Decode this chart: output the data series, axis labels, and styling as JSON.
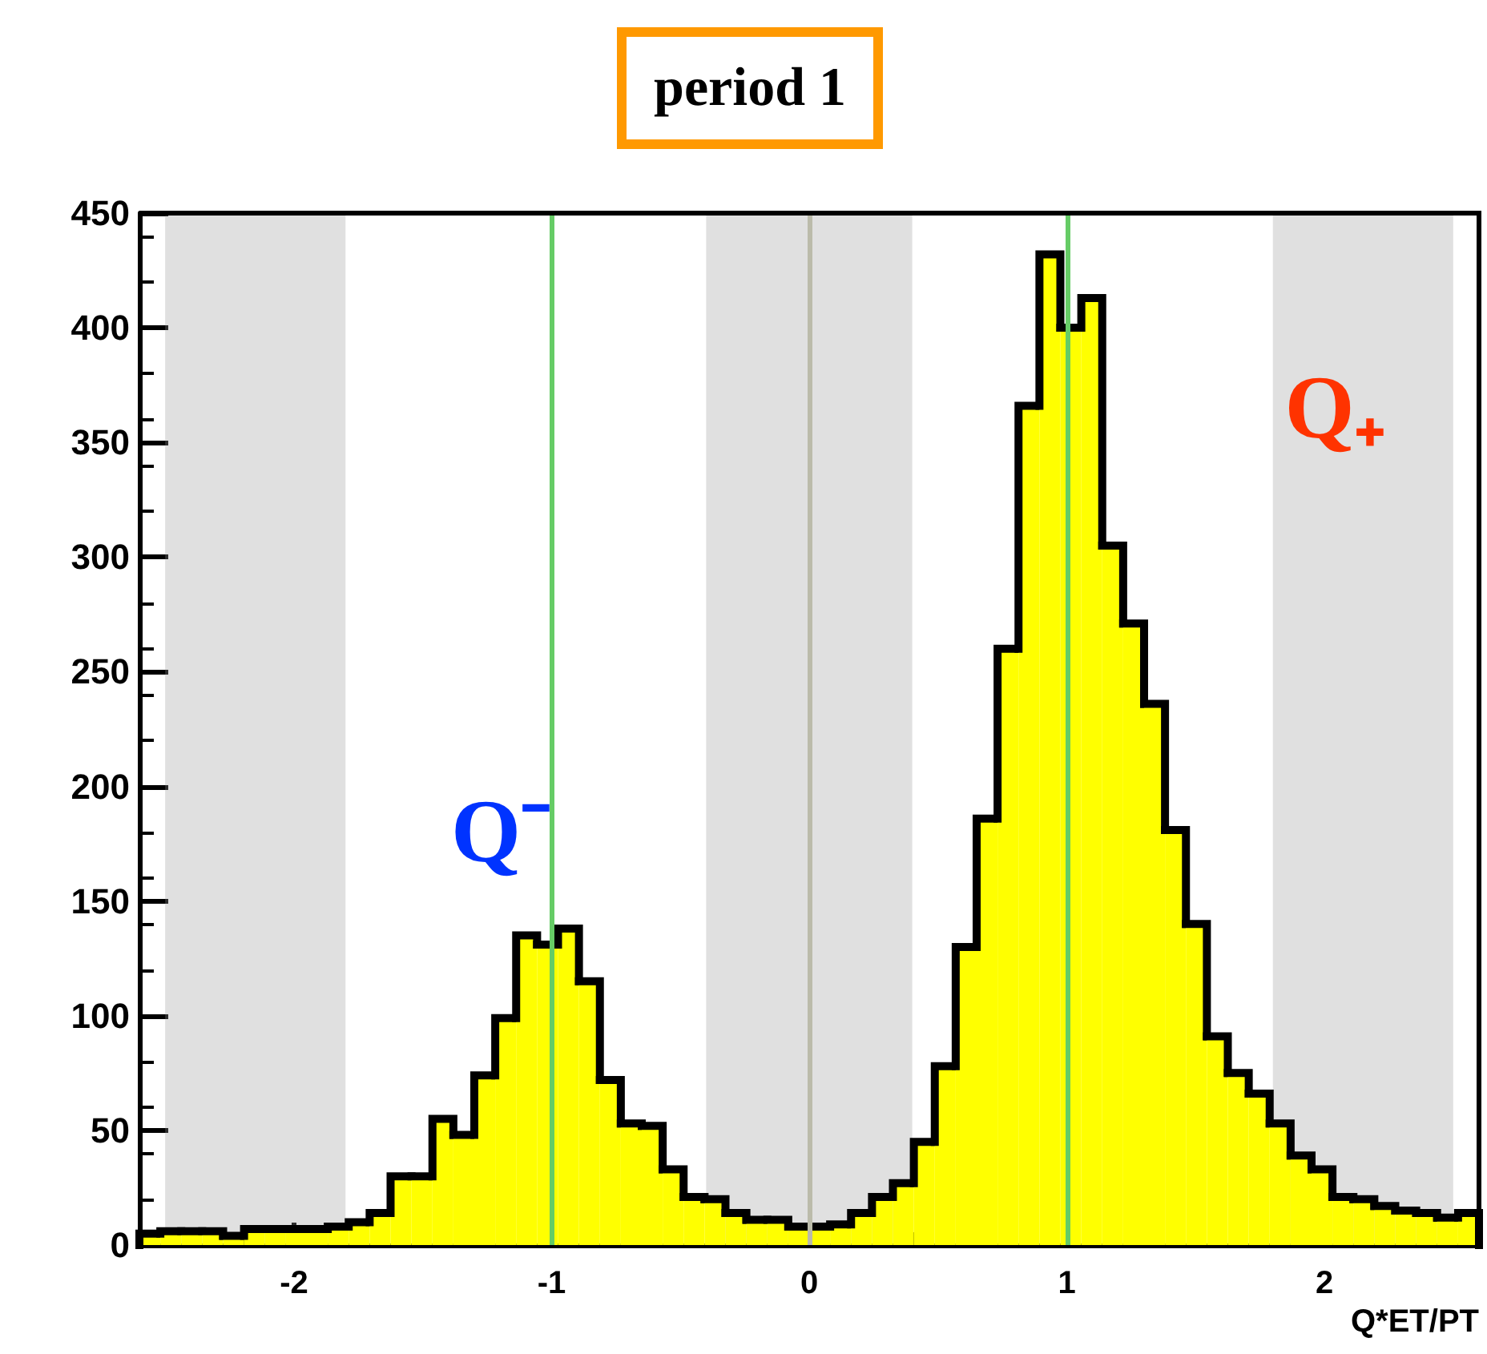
{
  "chart_data": {
    "type": "histogram",
    "title": "period 1",
    "xlabel": "Q*ET/PT",
    "bins": [
      -2.6,
      -2.51875,
      -2.4375,
      -2.35625,
      -2.275,
      -2.19375,
      -2.1125,
      -2.03125,
      -1.95,
      -1.86875,
      -1.7875,
      -1.70625,
      -1.625,
      -1.54375,
      -1.4625,
      -1.38125,
      -1.3,
      -1.21875,
      -1.1375,
      -1.05625,
      -0.975,
      -0.89375,
      -0.8125,
      -0.73125,
      -0.65,
      -0.56875,
      -0.4875,
      -0.40625,
      -0.325,
      -0.24375,
      -0.1625,
      -0.08125,
      0,
      0.08125,
      0.1625,
      0.24375,
      0.325,
      0.40625,
      0.4875,
      0.56875,
      0.65,
      0.73125,
      0.8125,
      0.89375,
      0.975,
      1.05625,
      1.1375,
      1.21875,
      1.3,
      1.38125,
      1.4625,
      1.54375,
      1.625,
      1.70625,
      1.7875,
      1.86875,
      1.95,
      2.03125,
      2.1125,
      2.19375,
      2.275,
      2.35625,
      2.4375,
      2.51875,
      2.6
    ],
    "values": [
      5,
      6,
      6,
      6,
      4,
      7,
      7,
      7,
      7,
      8,
      10,
      14,
      30,
      30,
      55,
      48,
      74,
      99,
      135,
      131,
      138,
      115,
      72,
      53,
      52,
      33,
      21,
      20,
      14,
      11,
      11,
      8,
      8,
      9,
      14,
      21,
      27,
      45,
      78,
      130,
      186,
      260,
      366,
      432,
      400,
      413,
      305,
      271,
      236,
      181,
      140,
      91,
      75,
      66,
      53,
      39,
      33,
      21,
      20,
      17,
      15,
      14,
      12,
      14
    ],
    "color": "#ffff00",
    "xlim": [
      -2.6,
      2.6
    ],
    "xticks": [
      -2,
      -1,
      0,
      1,
      2
    ],
    "ylim": [
      0,
      450
    ],
    "yticks": [
      0,
      50,
      100,
      150,
      200,
      250,
      300,
      350,
      400,
      450
    ],
    "grid": false,
    "bands": [
      {
        "axis": "x",
        "from": -2.5,
        "to": -1.8,
        "color": "#999999"
      },
      {
        "axis": "x",
        "from": -0.4,
        "to": 0.4,
        "color": "#999999"
      },
      {
        "axis": "x",
        "from": 1.8,
        "to": 2.5,
        "color": "#999999"
      }
    ],
    "ref_lines": [
      {
        "axis": "x",
        "value": -1,
        "color": "#66cc66"
      },
      {
        "axis": "x",
        "value": 0,
        "color": "#bbbbaa"
      },
      {
        "axis": "x",
        "value": 1,
        "color": "#66cc66"
      }
    ],
    "annotations": [
      {
        "text": "Q⁻",
        "x": -0.934,
        "y": 138
      },
      "Q₊"
    ]
  }
}
